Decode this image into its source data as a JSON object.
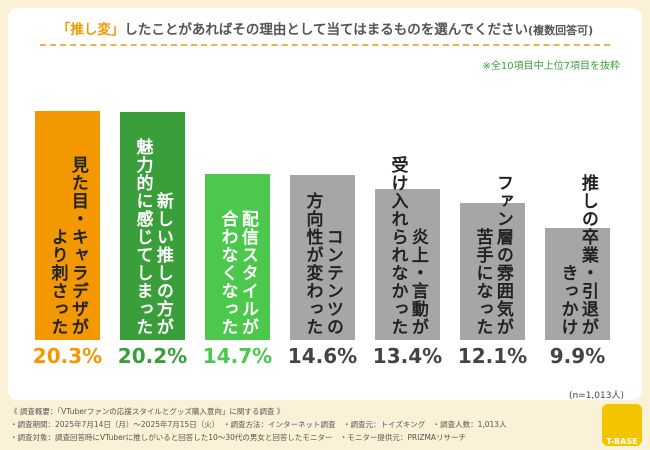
{
  "chart_data": {
    "type": "bar",
    "title_highlight": "「推し変」",
    "title": "したことがあればその理由として当てはまるものを選んでください",
    "title_suffix": "(複数回答可)",
    "note": "※全10項目中上位7項目を抜粋",
    "sample": "(n=1,013人)",
    "categories": [
      "見た目・キャラデザが\nより刺さった",
      "新しい推しの方が\n魅力的に感じてしまった",
      "配信スタイルが\n合わなくなった",
      "コンテンツの\n方向性が変わった",
      "炎上・言動が\n受け入れられなかった",
      "ファン層の雰囲気が\n苦手になった",
      "推しの卒業・引退が\nきっかけ"
    ],
    "values": [
      20.3,
      20.2,
      14.7,
      14.6,
      13.4,
      12.1,
      9.9
    ],
    "value_labels": [
      "20.3%",
      "20.2%",
      "14.7%",
      "14.6%",
      "13.4%",
      "12.1%",
      "9.9%"
    ],
    "colors": [
      "#f39800",
      "#3a9e3a",
      "#4cc94c",
      "#a6a6a6",
      "#a6a6a6",
      "#a6a6a6",
      "#a6a6a6"
    ],
    "category_text_colors": [
      "#222222",
      "#ffffff",
      "#ffffff",
      "#222222",
      "#222222",
      "#222222",
      "#222222"
    ],
    "value_label_colors": [
      "#f39800",
      "#3a9e3a",
      "#4cc94c",
      "#444444",
      "#444444",
      "#444444",
      "#444444"
    ],
    "footer": [
      "《 調査概要：「VTuberファンの応援スタイルとグッズ購入意向」に関する調査 》",
      "・調査期間：2025年7月14日（月）～2025年7月15日（火）　・調査方法：インターネット調査　・調査元：トイズキング　・調査人数：1,013人",
      "・調査対象：調査回答時にVTuberに推しがいると回答した10～30代の男女と回答したモニター　・モニター提供元：PRIZMAリサーチ"
    ],
    "logo": "T-BASE"
  }
}
